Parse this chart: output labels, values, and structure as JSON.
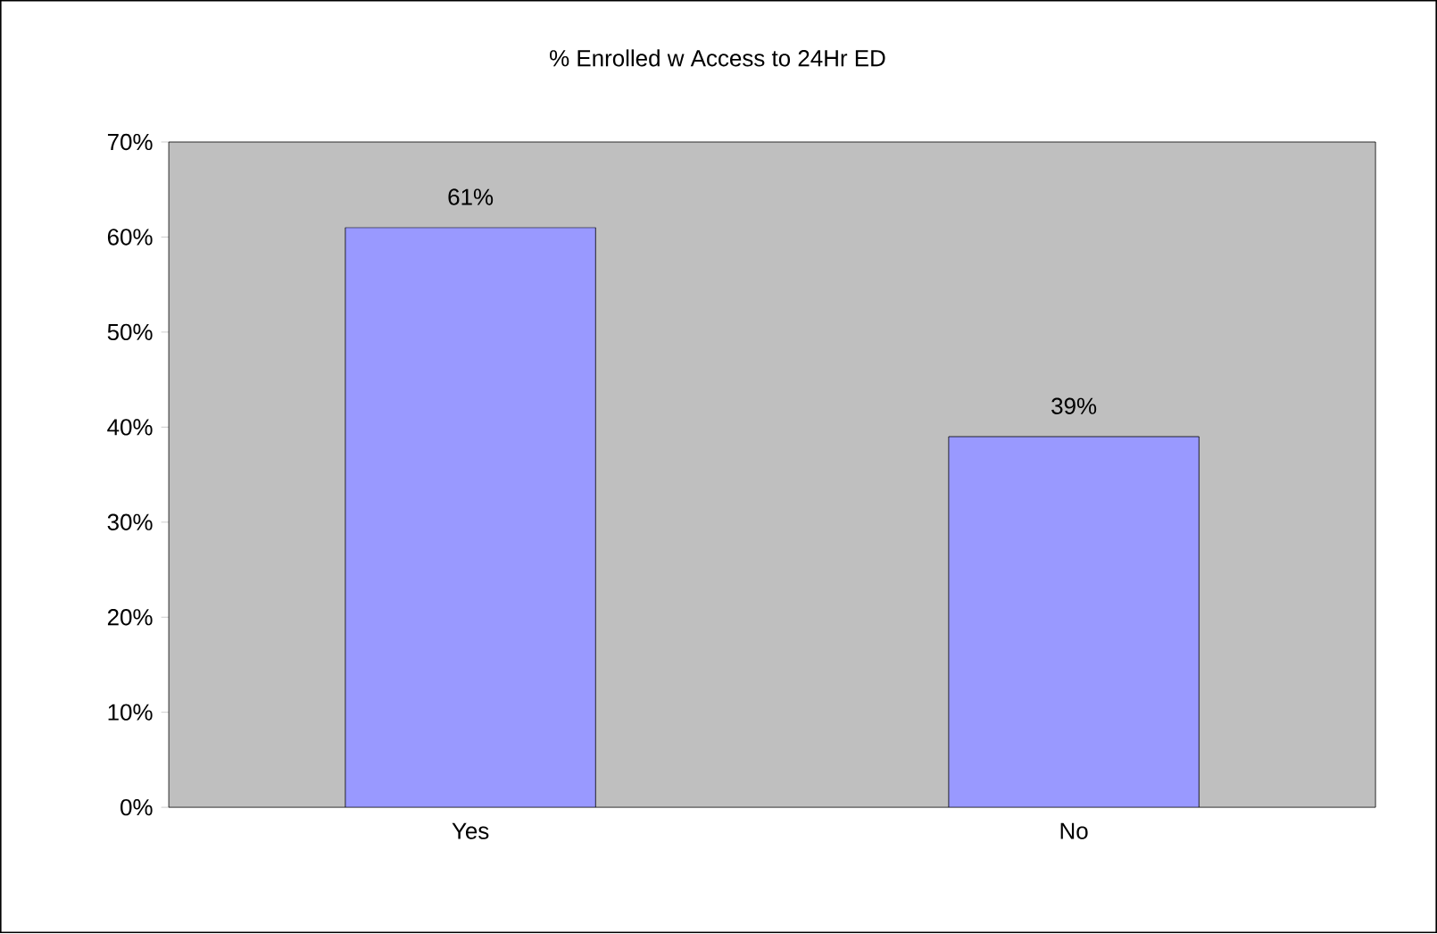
{
  "chart_data": {
    "type": "bar",
    "title": "% Enrolled w  Access to 24Hr ED",
    "categories": [
      "Yes",
      "No"
    ],
    "values": [
      61,
      39
    ],
    "value_labels": [
      "61%",
      "39%"
    ],
    "color": "#9999ff",
    "ylim": [
      0,
      70
    ],
    "yticks": [
      {
        "value": 0,
        "label": "0%"
      },
      {
        "value": 10,
        "label": "10%"
      },
      {
        "value": 20,
        "label": "20%"
      },
      {
        "value": 30,
        "label": "30%"
      },
      {
        "value": 40,
        "label": "40%"
      },
      {
        "value": 50,
        "label": "50%"
      },
      {
        "value": 60,
        "label": "60%"
      },
      {
        "value": 70,
        "label": "70%"
      }
    ],
    "grid": false
  }
}
